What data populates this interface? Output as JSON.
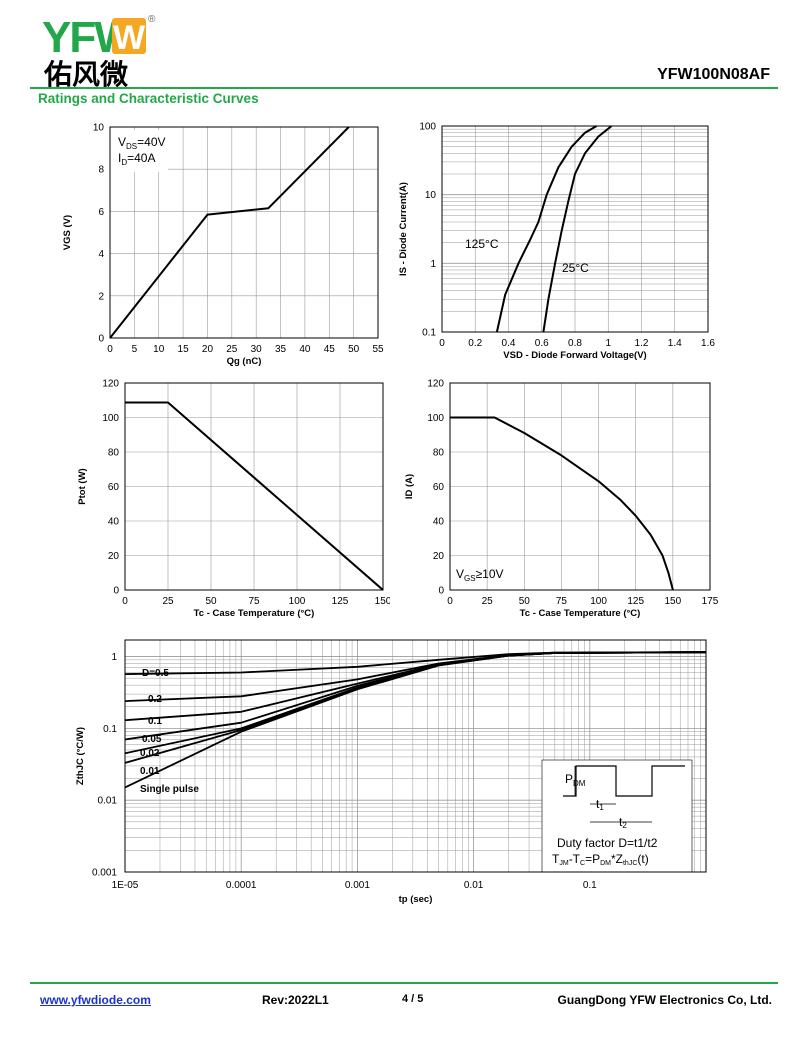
{
  "header": {
    "logo_text": "YFW",
    "logo_chinese": "佑风微",
    "registered_mark": "®",
    "part_number": "YFW100N08AF",
    "section_title": "Ratings and Characteristic Curves"
  },
  "footer": {
    "url": "www.yfwdiode.com",
    "rev": "Rev:2022L1",
    "page": "4 / 5",
    "company": "GuangDong YFW Electronics Co, Ltd."
  },
  "colors": {
    "brand_green": "#22a84a",
    "brand_orange": "#f5a623",
    "link_blue": "#1a33cc"
  },
  "chart_data": [
    {
      "id": "gate_charge",
      "type": "line",
      "xlabel": "Qg (nC)",
      "ylabel": "VGS (V)",
      "xlim": [
        0,
        55
      ],
      "ylim": [
        0,
        10
      ],
      "xticks": [
        0,
        5,
        10,
        15,
        20,
        25,
        30,
        35,
        40,
        45,
        50,
        55
      ],
      "yticks": [
        0,
        2,
        4,
        6,
        8,
        10
      ],
      "grid": true,
      "annotation": [
        "VDS=40V",
        "ID=40A"
      ],
      "series": [
        {
          "x": [
            0,
            20,
            32.5,
            49
          ],
          "y": [
            0,
            5.85,
            6.15,
            10
          ]
        }
      ]
    },
    {
      "id": "diode_forward",
      "type": "line",
      "xlabel": "VSD - Diode Forward Voltage(V)",
      "ylabel": "IS - Diode Current(A)",
      "xlim": [
        0,
        1.6
      ],
      "ylim": [
        0.1,
        100
      ],
      "yscale": "log",
      "xticks": [
        0,
        0.2,
        0.4,
        0.6,
        0.8,
        1,
        1.2,
        1.4,
        1.6
      ],
      "yticks": [
        0.1,
        1,
        10,
        100
      ],
      "grid": true,
      "series": [
        {
          "name": "125°C",
          "x": [
            0.33,
            0.38,
            0.46,
            0.53,
            0.58,
            0.63,
            0.7,
            0.78,
            0.86,
            0.93
          ],
          "y": [
            0.1,
            0.35,
            1,
            2.2,
            4,
            10,
            25,
            50,
            80,
            100
          ]
        },
        {
          "name": "25°C",
          "x": [
            0.61,
            0.64,
            0.68,
            0.72,
            0.76,
            0.8,
            0.86,
            0.94,
            1.02
          ],
          "y": [
            0.1,
            0.3,
            1,
            3,
            8,
            20,
            40,
            70,
            100
          ]
        }
      ]
    },
    {
      "id": "power_derating",
      "type": "line",
      "xlabel": "Tc - Case Temperature (°C)",
      "ylabel": "Ptot (W)",
      "xlim": [
        0,
        150
      ],
      "ylim": [
        0,
        120
      ],
      "xticks": [
        0,
        25,
        50,
        75,
        100,
        125,
        150
      ],
      "yticks": [
        0,
        20,
        40,
        60,
        80,
        100,
        120
      ],
      "grid": true,
      "series": [
        {
          "x": [
            0,
            25,
            150
          ],
          "y": [
            108.7,
            108.7,
            0
          ]
        }
      ]
    },
    {
      "id": "current_derating",
      "type": "line",
      "xlabel": "Tc - Case Temperature (°C)",
      "ylabel": "ID (A)",
      "xlim": [
        0,
        175
      ],
      "ylim": [
        0,
        120
      ],
      "xticks": [
        0,
        25,
        50,
        75,
        100,
        125,
        150,
        175
      ],
      "yticks": [
        0,
        20,
        40,
        60,
        80,
        100,
        120
      ],
      "grid": true,
      "annotation": [
        "VGS≥10V"
      ],
      "series": [
        {
          "x": [
            0,
            30,
            50,
            75,
            100,
            115,
            125,
            135,
            143,
            147,
            150
          ],
          "y": [
            100,
            100,
            91,
            78,
            63,
            52,
            43,
            32,
            20,
            10,
            0
          ]
        }
      ]
    },
    {
      "id": "transient_thermal",
      "type": "line",
      "xlabel": "tp (sec)",
      "ylabel": "ZthJC (°C/W)",
      "xscale": "log",
      "yscale": "log",
      "xlim": [
        1e-05,
        1
      ],
      "ylim": [
        0.001,
        1.7
      ],
      "xtick_labels": [
        "1E-05",
        "0.0001",
        "0.001",
        "0.01",
        "0.1"
      ],
      "ytick_labels": [
        "0.001",
        "0.01",
        "0.1",
        "1"
      ],
      "grid": true,
      "inset_text": [
        "PDM",
        "t1",
        "t2",
        "Duty factor D=t1/t2",
        "TJM-TC=PDM*ZthJC(t)"
      ],
      "series": [
        {
          "name": "D=0.5",
          "x": [
            1e-05,
            0.0001,
            0.001,
            0.005,
            0.02,
            0.05,
            1
          ],
          "y": [
            0.57,
            0.6,
            0.72,
            0.9,
            1.08,
            1.13,
            1.15
          ]
        },
        {
          "name": "0.2",
          "x": [
            1e-05,
            0.0001,
            0.001,
            0.005,
            0.02,
            0.05,
            1
          ],
          "y": [
            0.24,
            0.28,
            0.48,
            0.8,
            1.05,
            1.13,
            1.15
          ]
        },
        {
          "name": "0.1",
          "x": [
            1e-05,
            0.0001,
            0.001,
            0.005,
            0.02,
            0.05,
            1
          ],
          "y": [
            0.13,
            0.17,
            0.42,
            0.78,
            1.04,
            1.12,
            1.15
          ]
        },
        {
          "name": "0.05",
          "x": [
            1e-05,
            0.0001,
            0.001,
            0.005,
            0.02,
            0.05,
            1
          ],
          "y": [
            0.07,
            0.12,
            0.39,
            0.77,
            1.04,
            1.12,
            1.15
          ]
        },
        {
          "name": "0.02",
          "x": [
            1e-05,
            0.0001,
            0.001,
            0.005,
            0.02,
            0.05,
            1
          ],
          "y": [
            0.045,
            0.1,
            0.37,
            0.76,
            1.03,
            1.12,
            1.15
          ]
        },
        {
          "name": "0.01",
          "x": [
            1e-05,
            0.0001,
            0.001,
            0.005,
            0.02,
            0.05,
            1
          ],
          "y": [
            0.033,
            0.095,
            0.36,
            0.76,
            1.03,
            1.12,
            1.15
          ]
        },
        {
          "name": "Single pulse",
          "x": [
            1e-05,
            0.0001,
            0.001,
            0.005,
            0.02,
            0.05,
            1
          ],
          "y": [
            0.015,
            0.09,
            0.35,
            0.75,
            1.03,
            1.12,
            1.15
          ]
        }
      ]
    }
  ]
}
